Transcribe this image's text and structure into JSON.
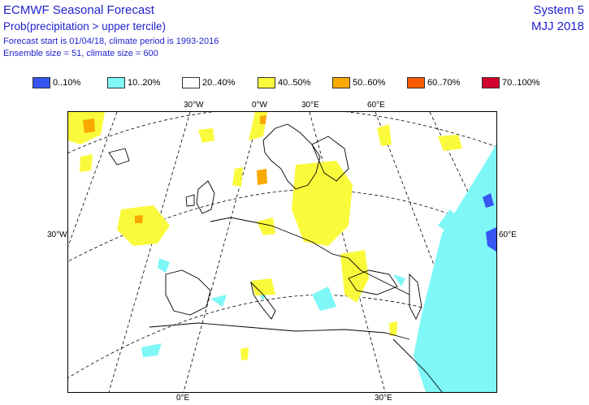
{
  "header": {
    "title": "ECMWF Seasonal Forecast",
    "subtitle": "Prob(precipitation > upper tercile)",
    "forecast_info": "Forecast start is 01/04/18, climate period is 1993-2016",
    "ensemble_info": "Ensemble size = 51, climate size = 600",
    "system": "System 5",
    "period": "MJJ 2018"
  },
  "legend": [
    {
      "label": "0..10%",
      "color": "#3755f0"
    },
    {
      "label": "10..20%",
      "color": "#7ff7f7"
    },
    {
      "label": "20..40%",
      "color": "#ffffff"
    },
    {
      "label": "40..50%",
      "color": "#fafa3c"
    },
    {
      "label": "50..60%",
      "color": "#f9a900"
    },
    {
      "label": "60..70%",
      "color": "#f95a00"
    },
    {
      "label": "70..100%",
      "color": "#d2002d"
    }
  ],
  "axis_labels": {
    "top": [
      "30°W",
      "0°W",
      "30°E",
      "60°E"
    ],
    "bottom": [
      "0°E",
      "30°E"
    ],
    "left": [
      "30°W"
    ],
    "right": [
      "60°E"
    ]
  }
}
